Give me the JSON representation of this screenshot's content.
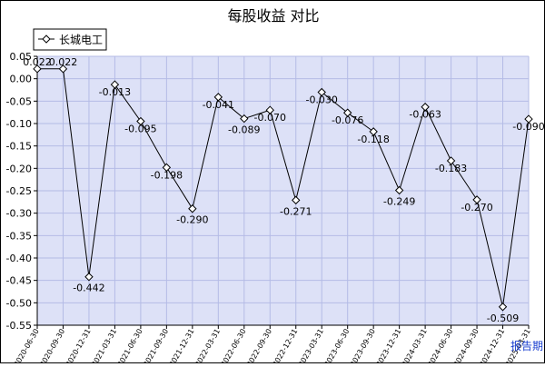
{
  "chart_data": {
    "type": "line",
    "title": "每股收益  对比",
    "legend": {
      "entries": [
        "长城电工"
      ],
      "placement": "top-left"
    },
    "xlabel": "报告期",
    "ylabel": "",
    "ylim": [
      -0.55,
      0.05
    ],
    "yticks": [
      0.05,
      0.0,
      -0.05,
      -0.1,
      -0.15,
      -0.2,
      -0.25,
      -0.3,
      -0.35,
      -0.4,
      -0.45,
      -0.5,
      -0.55
    ],
    "ytick_labels": [
      "0.05",
      "0.00",
      "-0.05",
      "-0.10",
      "-0.15",
      "-0.20",
      "-0.25",
      "-0.30",
      "-0.35",
      "-0.40",
      "-0.45",
      "-0.50",
      "-0.55"
    ],
    "grid": true,
    "colors": {
      "plot_bg": "#dde1f7",
      "grid": "#b4bbe6",
      "line": "#000000",
      "axis_label": "#1a3fd0",
      "border": "#000000"
    },
    "categories": [
      "2020-06-30",
      "2020-09-30",
      "2020-12-31",
      "2021-03-31",
      "2021-06-30",
      "2021-09-30",
      "2021-12-31",
      "2022-03-31",
      "2022-06-30",
      "2022-09-30",
      "2022-12-31",
      "2023-03-31",
      "2023-06-30",
      "2023-09-30",
      "2023-12-31",
      "2024-03-31",
      "2024-06-30",
      "2024-09-30",
      "2024-12-31",
      "2025-03-31"
    ],
    "series": [
      {
        "name": "长城电工",
        "values": [
          0.022,
          0.022,
          -0.442,
          -0.013,
          -0.095,
          -0.198,
          -0.29,
          -0.041,
          -0.089,
          -0.07,
          -0.271,
          -0.03,
          -0.076,
          -0.118,
          -0.249,
          -0.063,
          -0.183,
          -0.27,
          -0.509,
          -0.09
        ],
        "labels": [
          "0.022",
          "0.022",
          "-0.442",
          "-0.013",
          "-0.095",
          "-0.198",
          "-0.290",
          "-0.041",
          "-0.089",
          "-0.070",
          "-0.271",
          "-0.030",
          "-0.076",
          "-0.118",
          "-0.249",
          "-0.063",
          "-0.183",
          "-0.270",
          "-0.509",
          "-0.090"
        ]
      }
    ]
  }
}
